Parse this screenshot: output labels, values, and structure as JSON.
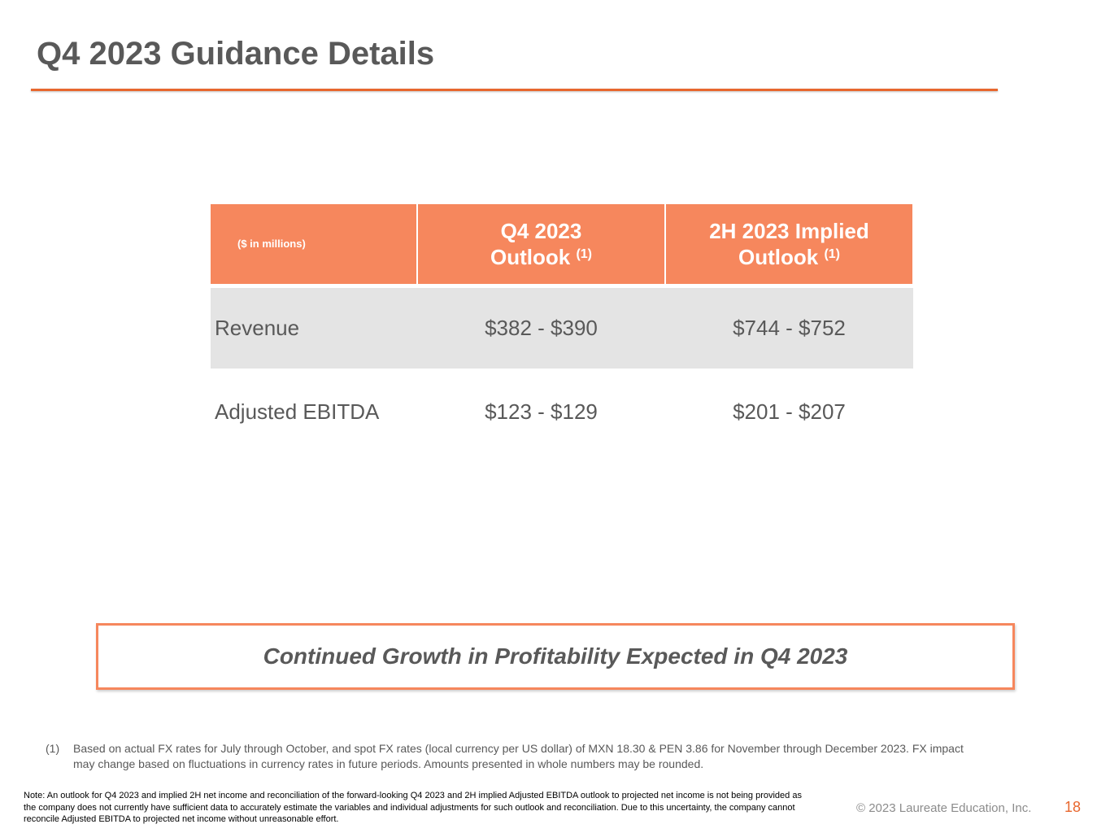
{
  "title": "Q4 2023 Guidance Details",
  "table": {
    "units_label": "($ in millions)",
    "columns": [
      {
        "line1": "Q4 2023",
        "line2": "Outlook",
        "note": "(1)"
      },
      {
        "line1": "2H 2023 Implied",
        "line2": "Outlook",
        "note": "(1)"
      }
    ],
    "rows": [
      {
        "label": "Revenue",
        "q4": "$382 - $390",
        "h2": "$744 - $752"
      },
      {
        "label": "Adjusted EBITDA",
        "q4": "$123 - $129",
        "h2": "$201 - $207"
      }
    ]
  },
  "callout": "Continued Growth in Profitability Expected in Q4 2023",
  "footnote": {
    "marker": "(1)",
    "text": "Based on actual FX rates for July through October, and spot FX rates (local currency per US dollar) of MXN 18.30 & PEN 3.86 for November through December 2023. FX impact may change based on fluctuations in currency rates in future periods. Amounts presented in whole numbers may be rounded."
  },
  "note": "Note: An outlook for Q4 2023 and implied 2H net income and reconciliation of the forward-looking Q4 2023 and 2H implied Adjusted EBITDA outlook to projected net income is not being provided as the company does not currently have sufficient data to accurately estimate the variables and individual adjustments for such outlook and reconciliation. Due to this uncertainty, the company cannot reconcile Adjusted EBITDA to projected net income without unreasonable effort.",
  "copyright": "© 2023 Laureate Education, Inc.",
  "page_number": "18",
  "colors": {
    "accent": "#e8672e",
    "header_fill": "#f6875d",
    "row_shade": "#e4e4e4",
    "text": "#595959"
  }
}
